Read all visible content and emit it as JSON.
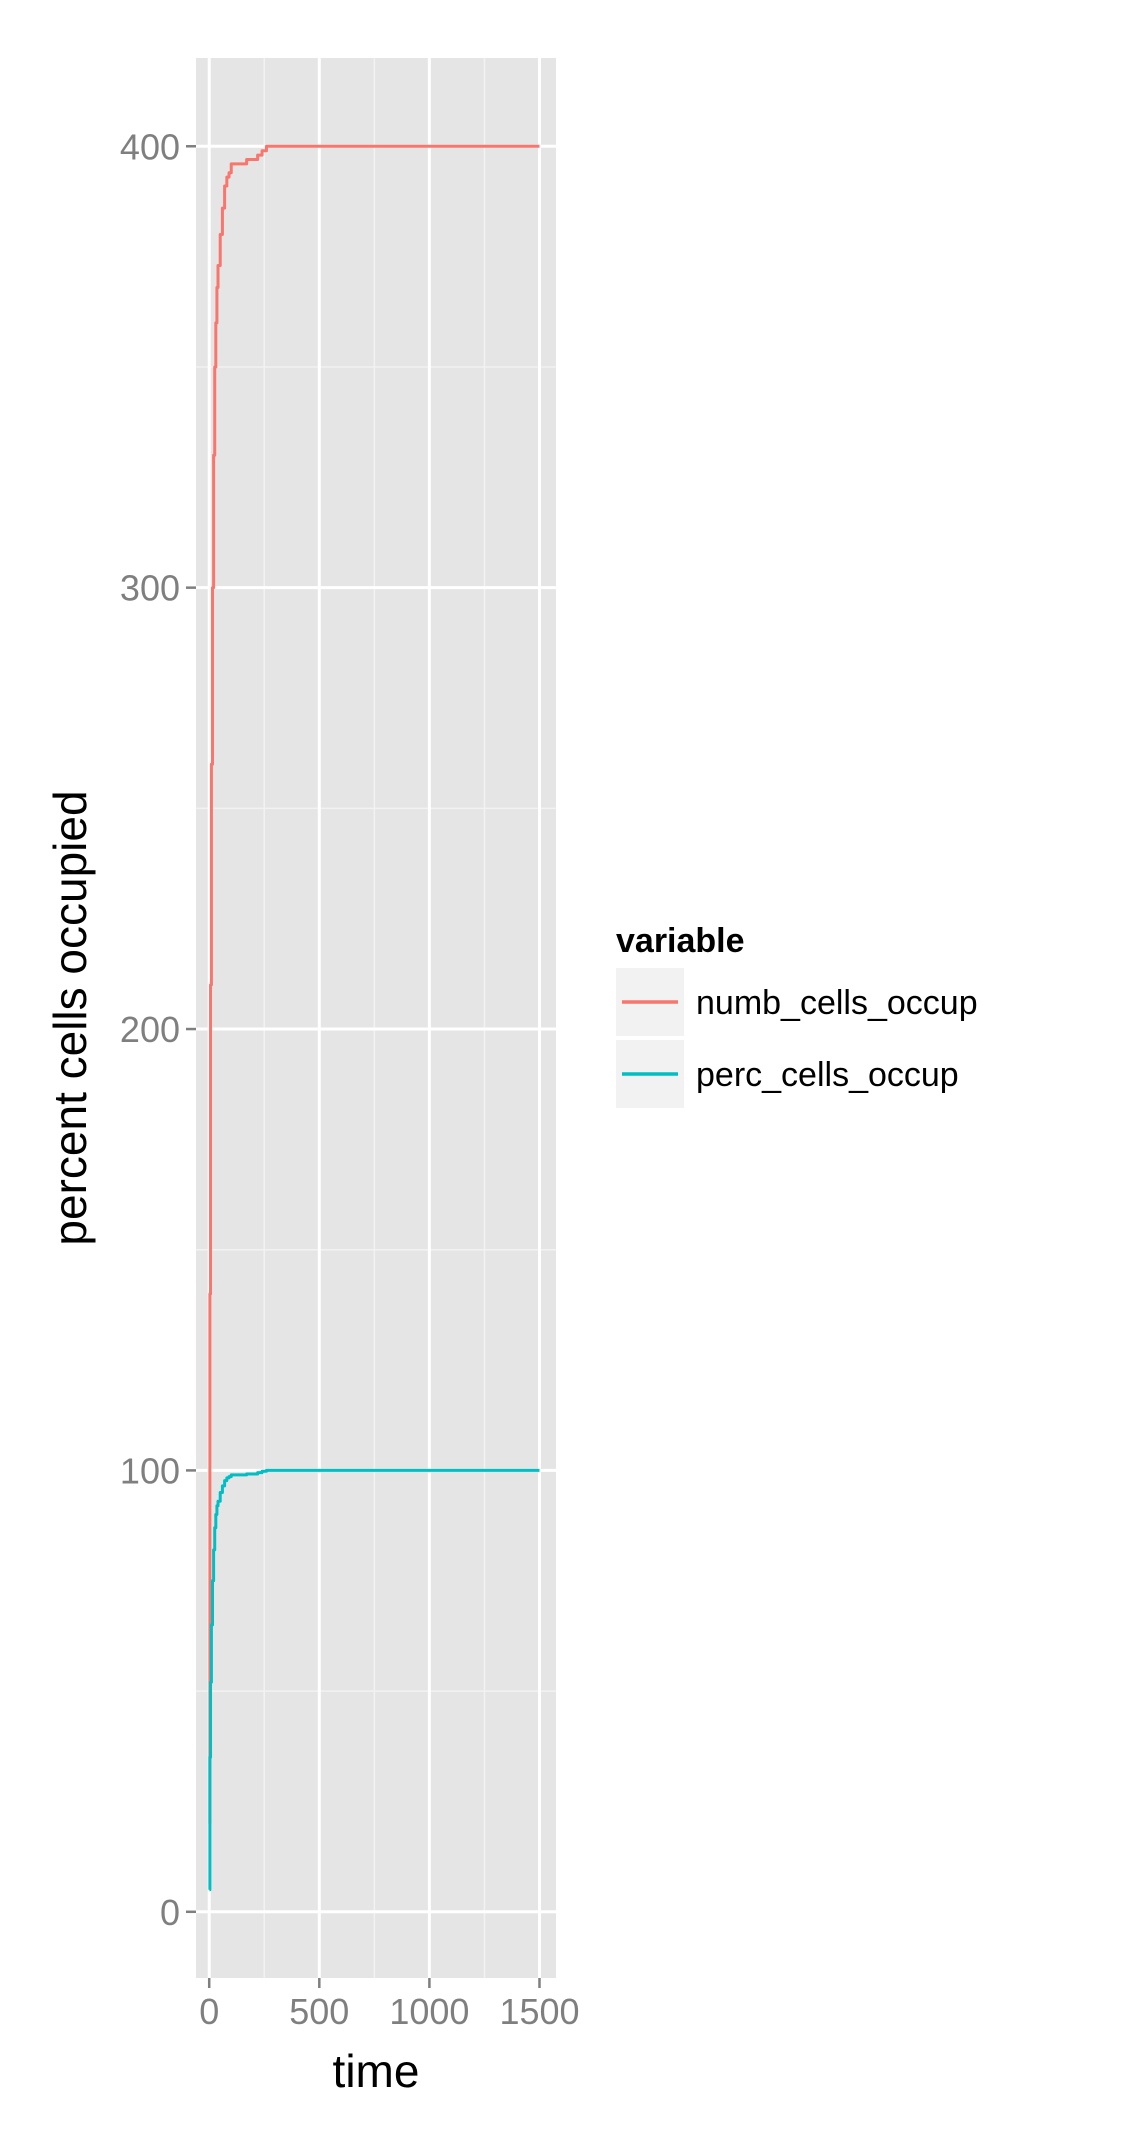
{
  "chart_data": {
    "type": "line",
    "title": "",
    "xlabel": "time",
    "ylabel": "percent cells occupied",
    "xlim": [
      -60,
      1575
    ],
    "ylim": [
      -15,
      420
    ],
    "x_ticks": [
      0,
      500,
      1000,
      1500
    ],
    "x_tick_labels": [
      "0",
      "500",
      "1000",
      "1500"
    ],
    "y_ticks": [
      0,
      100,
      200,
      300,
      400
    ],
    "y_tick_labels": [
      "0",
      "100",
      "200",
      "300",
      "400"
    ],
    "grid": true,
    "legend": {
      "title": "variable",
      "position": "right"
    },
    "series": [
      {
        "name": "numb_cells_occup",
        "color": "#F8766D",
        "x": [
          1,
          3,
          6,
          10,
          15,
          20,
          25,
          30,
          35,
          40,
          50,
          60,
          70,
          80,
          90,
          100,
          120,
          150,
          170,
          200,
          220,
          240,
          260,
          280,
          300,
          400,
          600,
          800,
          1000,
          1200,
          1400,
          1500
        ],
        "y": [
          20,
          140,
          210,
          260,
          300,
          330,
          350,
          360,
          368,
          373,
          380,
          386,
          391,
          393,
          394,
          396,
          396,
          396,
          397,
          397,
          398,
          399,
          400,
          400,
          400,
          400,
          400,
          400,
          400,
          400,
          400,
          400
        ]
      },
      {
        "name": "perc_cells_occup",
        "color": "#00BFC4",
        "x": [
          1,
          3,
          6,
          10,
          15,
          20,
          25,
          30,
          35,
          40,
          50,
          60,
          70,
          80,
          90,
          100,
          120,
          150,
          170,
          200,
          220,
          240,
          260,
          280,
          300,
          400,
          600,
          800,
          1000,
          1200,
          1400,
          1500
        ],
        "y": [
          5,
          35,
          52,
          65,
          75,
          82,
          87,
          90,
          92,
          93,
          95,
          96.5,
          97.7,
          98.3,
          98.6,
          99,
          99,
          99,
          99.2,
          99.2,
          99.5,
          99.8,
          100,
          100,
          100,
          100,
          100,
          100,
          100,
          100,
          100,
          100
        ]
      }
    ]
  }
}
